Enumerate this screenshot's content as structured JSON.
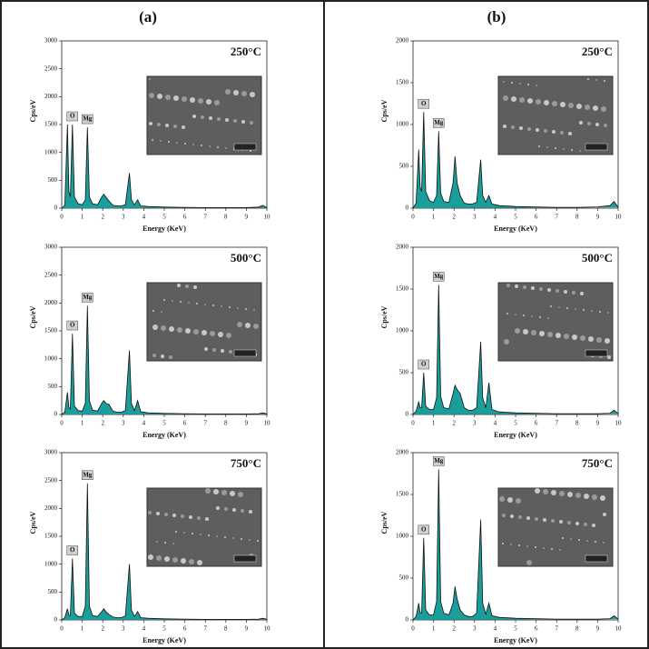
{
  "panel_labels": [
    "(a)",
    "(b)"
  ],
  "chart_data": [
    {
      "type": "area",
      "title": "250°C",
      "xlabel": "Energy (KeV)",
      "ylabel": "Cps/eV",
      "xlim": [
        0,
        10
      ],
      "xticks": [
        0,
        1,
        2,
        3,
        4,
        5,
        6,
        7,
        8,
        9,
        10
      ],
      "ylim": [
        0,
        3000
      ],
      "yticks": [
        0,
        500,
        1000,
        1500,
        2000,
        2500,
        3000
      ],
      "x": [
        0,
        0.15,
        0.28,
        0.35,
        0.42,
        0.52,
        0.62,
        0.8,
        1.0,
        1.15,
        1.25,
        1.35,
        1.5,
        1.75,
        1.95,
        2.05,
        2.15,
        2.3,
        2.5,
        2.7,
        2.9,
        3.1,
        3.3,
        3.4,
        3.55,
        3.7,
        3.85,
        4.2,
        5,
        6,
        7,
        8,
        9,
        9.6,
        9.8,
        10
      ],
      "series": [
        {
          "color": "#1a9e9b",
          "values": [
            0,
            50,
            1500,
            300,
            200,
            1500,
            200,
            80,
            60,
            150,
            1450,
            200,
            80,
            60,
            200,
            250,
            200,
            130,
            50,
            40,
            40,
            60,
            630,
            150,
            60,
            150,
            40,
            30,
            20,
            15,
            10,
            10,
            10,
            20,
            50,
            10
          ]
        }
      ],
      "annotations": [
        {
          "text": "O",
          "x": 0.52
        },
        {
          "text": "Mg",
          "x": 1.25
        }
      ]
    },
    {
      "type": "area",
      "title": "500°C",
      "xlabel": "Energy (KeV)",
      "ylabel": "Cps/eV",
      "xlim": [
        0,
        10
      ],
      "xticks": [
        0,
        1,
        2,
        3,
        4,
        5,
        6,
        7,
        8,
        9,
        10
      ],
      "ylim": [
        0,
        3000
      ],
      "yticks": [
        0,
        500,
        1000,
        1500,
        2000,
        2500,
        3000
      ],
      "x": [
        0,
        0.15,
        0.28,
        0.35,
        0.42,
        0.52,
        0.62,
        0.8,
        1.0,
        1.15,
        1.25,
        1.35,
        1.5,
        1.75,
        1.95,
        2.05,
        2.15,
        2.3,
        2.5,
        2.7,
        2.9,
        3.1,
        3.3,
        3.4,
        3.55,
        3.7,
        3.85,
        4.2,
        5,
        6,
        7,
        8,
        9,
        9.6,
        9.8,
        10
      ],
      "series": [
        {
          "color": "#1a9e9b",
          "values": [
            0,
            40,
            400,
            120,
            100,
            1450,
            150,
            70,
            60,
            200,
            1950,
            250,
            80,
            60,
            200,
            250,
            200,
            180,
            60,
            40,
            40,
            70,
            1150,
            200,
            70,
            250,
            50,
            30,
            20,
            15,
            10,
            10,
            10,
            15,
            30,
            10
          ]
        }
      ],
      "annotations": [
        {
          "text": "O",
          "x": 0.52
        },
        {
          "text": "Mg",
          "x": 1.25
        }
      ]
    },
    {
      "type": "area",
      "title": "750°C",
      "xlabel": "Energy (KeV)",
      "ylabel": "Cps/eV",
      "xlim": [
        0,
        10
      ],
      "xticks": [
        0,
        1,
        2,
        3,
        4,
        5,
        6,
        7,
        8,
        9,
        10
      ],
      "ylim": [
        0,
        3000
      ],
      "yticks": [
        0,
        500,
        1000,
        1500,
        2000,
        2500,
        3000
      ],
      "x": [
        0,
        0.15,
        0.28,
        0.35,
        0.42,
        0.52,
        0.62,
        0.8,
        1.0,
        1.15,
        1.25,
        1.35,
        1.5,
        1.75,
        1.95,
        2.05,
        2.15,
        2.3,
        2.5,
        2.7,
        2.9,
        3.1,
        3.3,
        3.4,
        3.55,
        3.7,
        3.85,
        4.2,
        5,
        6,
        7,
        8,
        9,
        9.6,
        9.8,
        10
      ],
      "series": [
        {
          "color": "#1a9e9b",
          "values": [
            0,
            40,
            200,
            80,
            80,
            1100,
            120,
            60,
            60,
            250,
            2450,
            250,
            80,
            60,
            150,
            200,
            150,
            100,
            50,
            40,
            40,
            70,
            1000,
            180,
            60,
            150,
            40,
            30,
            20,
            15,
            10,
            10,
            10,
            15,
            30,
            10
          ]
        }
      ],
      "annotations": [
        {
          "text": "O",
          "x": 0.52
        },
        {
          "text": "Mg",
          "x": 1.25
        }
      ]
    },
    {
      "type": "area",
      "title": "250°C",
      "xlabel": "Energy (KeV)",
      "ylabel": "Cps/eV",
      "xlim": [
        0,
        10
      ],
      "xticks": [
        0,
        1,
        2,
        3,
        4,
        5,
        6,
        7,
        8,
        9,
        10
      ],
      "ylim": [
        0,
        2000
      ],
      "yticks": [
        0,
        500,
        1000,
        1500,
        2000
      ],
      "x": [
        0,
        0.15,
        0.28,
        0.35,
        0.42,
        0.52,
        0.62,
        0.8,
        1.0,
        1.15,
        1.25,
        1.35,
        1.5,
        1.75,
        1.95,
        2.05,
        2.15,
        2.3,
        2.5,
        2.7,
        2.9,
        3.1,
        3.3,
        3.4,
        3.55,
        3.7,
        3.85,
        4.2,
        5,
        6,
        7,
        8,
        9,
        9.6,
        9.8,
        10
      ],
      "series": [
        {
          "color": "#1a9e9b",
          "values": [
            0,
            60,
            700,
            250,
            200,
            1150,
            200,
            90,
            70,
            150,
            920,
            180,
            80,
            70,
            300,
            620,
            300,
            150,
            60,
            50,
            50,
            70,
            580,
            150,
            70,
            150,
            50,
            30,
            20,
            15,
            10,
            10,
            15,
            30,
            80,
            10
          ]
        }
      ],
      "annotations": [
        {
          "text": "O",
          "x": 0.52
        },
        {
          "text": "Mg",
          "x": 1.25
        }
      ]
    },
    {
      "type": "area",
      "title": "500°C",
      "xlabel": "Energy (KeV)",
      "ylabel": "Cps/eV",
      "xlim": [
        0,
        10
      ],
      "xticks": [
        0,
        1,
        2,
        3,
        4,
        5,
        6,
        7,
        8,
        9,
        10
      ],
      "ylim": [
        0,
        2000
      ],
      "yticks": [
        0,
        500,
        1000,
        1500,
        2000
      ],
      "x": [
        0,
        0.15,
        0.28,
        0.35,
        0.42,
        0.52,
        0.62,
        0.8,
        1.0,
        1.15,
        1.25,
        1.35,
        1.5,
        1.75,
        1.95,
        2.05,
        2.15,
        2.3,
        2.5,
        2.7,
        2.9,
        3.1,
        3.3,
        3.4,
        3.55,
        3.7,
        3.85,
        4.2,
        5,
        6,
        7,
        8,
        9,
        9.6,
        9.8,
        10
      ],
      "series": [
        {
          "color": "#1a9e9b",
          "values": [
            0,
            40,
            150,
            80,
            80,
            500,
            100,
            60,
            60,
            200,
            1550,
            220,
            80,
            70,
            250,
            350,
            300,
            250,
            80,
            50,
            50,
            80,
            870,
            200,
            80,
            380,
            60,
            30,
            20,
            15,
            10,
            10,
            10,
            15,
            50,
            10
          ]
        }
      ],
      "annotations": [
        {
          "text": "O",
          "x": 0.52
        },
        {
          "text": "Mg",
          "x": 1.25
        }
      ]
    },
    {
      "type": "area",
      "title": "750°C",
      "xlabel": "Energy (KeV)",
      "ylabel": "Cps/eV",
      "xlim": [
        0,
        10
      ],
      "xticks": [
        0,
        1,
        2,
        3,
        4,
        5,
        6,
        7,
        8,
        9,
        10
      ],
      "ylim": [
        0,
        2000
      ],
      "yticks": [
        0,
        500,
        1000,
        1500,
        2000
      ],
      "x": [
        0,
        0.15,
        0.28,
        0.35,
        0.42,
        0.52,
        0.62,
        0.8,
        1.0,
        1.15,
        1.25,
        1.35,
        1.5,
        1.75,
        1.95,
        2.05,
        2.15,
        2.3,
        2.5,
        2.7,
        2.9,
        3.1,
        3.3,
        3.4,
        3.55,
        3.7,
        3.85,
        4.2,
        5,
        6,
        7,
        8,
        9,
        9.6,
        9.8,
        10
      ],
      "series": [
        {
          "color": "#1a9e9b",
          "values": [
            0,
            40,
            200,
            80,
            80,
            980,
            120,
            60,
            60,
            220,
            1800,
            220,
            80,
            60,
            200,
            400,
            250,
            120,
            60,
            40,
            40,
            80,
            1200,
            200,
            70,
            200,
            50,
            30,
            20,
            15,
            10,
            10,
            10,
            15,
            50,
            10
          ]
        }
      ],
      "annotations": [
        {
          "text": "O",
          "x": 0.52
        },
        {
          "text": "Mg",
          "x": 1.25
        }
      ]
    }
  ]
}
